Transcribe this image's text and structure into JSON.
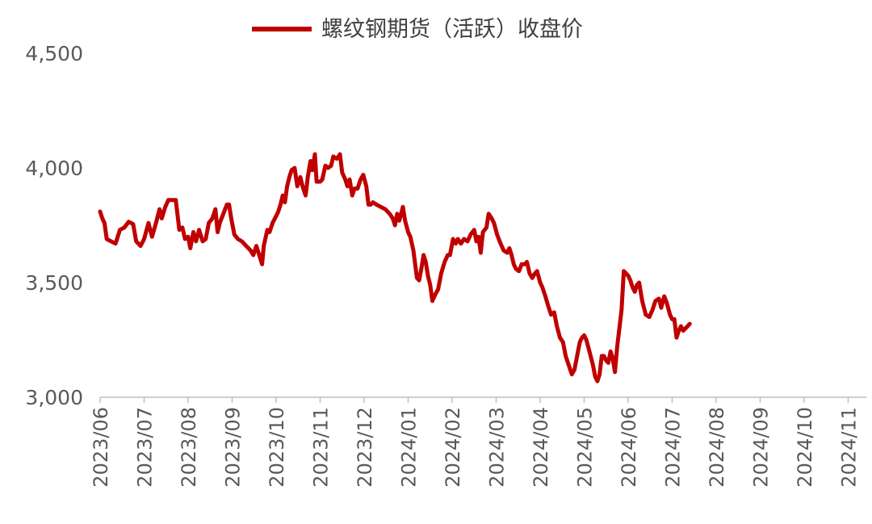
{
  "chart_data": {
    "type": "line",
    "title": "",
    "xlabel": "",
    "ylabel": "",
    "ylim": [
      3000,
      4500
    ],
    "yticks": [
      "3,000",
      "3,500",
      "4,000",
      "4,500"
    ],
    "xticks": [
      "2023/06",
      "2023/07",
      "2023/08",
      "2023/09",
      "2023/10",
      "2023/11",
      "2023/12",
      "2024/01",
      "2024/02",
      "2024/03",
      "2024/04",
      "2024/05",
      "2024/06",
      "2024/07",
      "2024/08",
      "2024/09",
      "2024/10",
      "2024/11"
    ],
    "grid": false,
    "legend": "top-center",
    "color": "#C00000",
    "series": [
      {
        "name": "螺纹钢期货（活跃）收盘价",
        "points": [
          [
            0.0,
            3810
          ],
          [
            0.05,
            3780
          ],
          [
            0.1,
            3760
          ],
          [
            0.15,
            3690
          ],
          [
            0.25,
            3680
          ],
          [
            0.35,
            3670
          ],
          [
            0.45,
            3730
          ],
          [
            0.55,
            3740
          ],
          [
            0.65,
            3765
          ],
          [
            0.75,
            3755
          ],
          [
            0.82,
            3680
          ],
          [
            0.92,
            3660
          ],
          [
            1.0,
            3690
          ],
          [
            1.1,
            3760
          ],
          [
            1.18,
            3700
          ],
          [
            1.27,
            3760
          ],
          [
            1.35,
            3820
          ],
          [
            1.4,
            3780
          ],
          [
            1.48,
            3830
          ],
          [
            1.55,
            3860
          ],
          [
            1.62,
            3860
          ],
          [
            1.72,
            3860
          ],
          [
            1.8,
            3730
          ],
          [
            1.87,
            3740
          ],
          [
            1.93,
            3690
          ],
          [
            2.0,
            3700
          ],
          [
            2.05,
            3650
          ],
          [
            2.12,
            3720
          ],
          [
            2.18,
            3680
          ],
          [
            2.25,
            3730
          ],
          [
            2.33,
            3680
          ],
          [
            2.4,
            3690
          ],
          [
            2.47,
            3760
          ],
          [
            2.55,
            3780
          ],
          [
            2.62,
            3820
          ],
          [
            2.67,
            3720
          ],
          [
            2.72,
            3760
          ],
          [
            2.8,
            3800
          ],
          [
            2.88,
            3840
          ],
          [
            2.93,
            3840
          ],
          [
            2.98,
            3780
          ],
          [
            3.05,
            3710
          ],
          [
            3.13,
            3690
          ],
          [
            3.22,
            3680
          ],
          [
            3.32,
            3660
          ],
          [
            3.42,
            3640
          ],
          [
            3.48,
            3620
          ],
          [
            3.55,
            3660
          ],
          [
            3.6,
            3630
          ],
          [
            3.68,
            3580
          ],
          [
            3.72,
            3660
          ],
          [
            3.8,
            3730
          ],
          [
            3.85,
            3720
          ],
          [
            3.92,
            3760
          ],
          [
            4.0,
            3790
          ],
          [
            4.05,
            3810
          ],
          [
            4.1,
            3840
          ],
          [
            4.15,
            3880
          ],
          [
            4.2,
            3850
          ],
          [
            4.25,
            3920
          ],
          [
            4.3,
            3960
          ],
          [
            4.35,
            3990
          ],
          [
            4.42,
            4000
          ],
          [
            4.48,
            3920
          ],
          [
            4.55,
            3960
          ],
          [
            4.6,
            3920
          ],
          [
            4.67,
            3880
          ],
          [
            4.72,
            3960
          ],
          [
            4.78,
            4030
          ],
          [
            4.82,
            3990
          ],
          [
            4.88,
            4060
          ],
          [
            4.92,
            3940
          ],
          [
            5.0,
            3940
          ],
          [
            5.05,
            3950
          ],
          [
            5.12,
            4010
          ],
          [
            5.18,
            4000
          ],
          [
            5.25,
            4010
          ],
          [
            5.3,
            4050
          ],
          [
            5.38,
            4040
          ],
          [
            5.45,
            4060
          ],
          [
            5.5,
            3980
          ],
          [
            5.57,
            3950
          ],
          [
            5.62,
            3920
          ],
          [
            5.67,
            3950
          ],
          [
            5.73,
            3880
          ],
          [
            5.78,
            3910
          ],
          [
            5.85,
            3910
          ],
          [
            5.92,
            3950
          ],
          [
            5.98,
            3970
          ],
          [
            6.05,
            3920
          ],
          [
            6.1,
            3840
          ],
          [
            6.15,
            3840
          ],
          [
            6.2,
            3850
          ],
          [
            6.28,
            3840
          ],
          [
            6.38,
            3830
          ],
          [
            6.48,
            3820
          ],
          [
            6.58,
            3800
          ],
          [
            6.65,
            3780
          ],
          [
            6.7,
            3750
          ],
          [
            6.75,
            3800
          ],
          [
            6.8,
            3770
          ],
          [
            6.88,
            3830
          ],
          [
            6.93,
            3770
          ],
          [
            7.0,
            3720
          ],
          [
            7.05,
            3700
          ],
          [
            7.12,
            3640
          ],
          [
            7.2,
            3520
          ],
          [
            7.25,
            3510
          ],
          [
            7.3,
            3560
          ],
          [
            7.35,
            3620
          ],
          [
            7.4,
            3590
          ],
          [
            7.45,
            3530
          ],
          [
            7.5,
            3490
          ],
          [
            7.55,
            3420
          ],
          [
            7.62,
            3450
          ],
          [
            7.68,
            3470
          ],
          [
            7.75,
            3540
          ],
          [
            7.83,
            3590
          ],
          [
            7.9,
            3620
          ],
          [
            7.95,
            3620
          ],
          [
            8.02,
            3690
          ],
          [
            8.08,
            3670
          ],
          [
            8.13,
            3690
          ],
          [
            8.2,
            3670
          ],
          [
            8.27,
            3690
          ],
          [
            8.35,
            3680
          ],
          [
            8.42,
            3710
          ],
          [
            8.5,
            3730
          ],
          [
            8.55,
            3680
          ],
          [
            8.6,
            3700
          ],
          [
            8.65,
            3630
          ],
          [
            8.7,
            3720
          ],
          [
            8.78,
            3740
          ],
          [
            8.83,
            3800
          ],
          [
            8.9,
            3780
          ],
          [
            8.95,
            3760
          ],
          [
            9.02,
            3710
          ],
          [
            9.1,
            3670
          ],
          [
            9.17,
            3640
          ],
          [
            9.25,
            3630
          ],
          [
            9.3,
            3650
          ],
          [
            9.35,
            3620
          ],
          [
            9.4,
            3580
          ],
          [
            9.45,
            3560
          ],
          [
            9.52,
            3550
          ],
          [
            9.58,
            3580
          ],
          [
            9.65,
            3580
          ],
          [
            9.7,
            3590
          ],
          [
            9.76,
            3540
          ],
          [
            9.82,
            3520
          ],
          [
            9.88,
            3540
          ],
          [
            9.93,
            3550
          ],
          [
            10.0,
            3500
          ],
          [
            10.05,
            3480
          ],
          [
            10.12,
            3440
          ],
          [
            10.18,
            3400
          ],
          [
            10.25,
            3360
          ],
          [
            10.32,
            3370
          ],
          [
            10.38,
            3310
          ],
          [
            10.45,
            3260
          ],
          [
            10.52,
            3240
          ],
          [
            10.58,
            3180
          ],
          [
            10.65,
            3140
          ],
          [
            10.72,
            3100
          ],
          [
            10.78,
            3120
          ],
          [
            10.83,
            3170
          ],
          [
            10.9,
            3240
          ],
          [
            10.95,
            3260
          ],
          [
            11.0,
            3270
          ],
          [
            11.05,
            3250
          ],
          [
            11.12,
            3200
          ],
          [
            11.2,
            3140
          ],
          [
            11.25,
            3090
          ],
          [
            11.3,
            3070
          ],
          [
            11.35,
            3100
          ],
          [
            11.4,
            3180
          ],
          [
            11.45,
            3180
          ],
          [
            11.5,
            3160
          ],
          [
            11.55,
            3150
          ],
          [
            11.6,
            3200
          ],
          [
            11.65,
            3170
          ],
          [
            11.7,
            3110
          ],
          [
            11.75,
            3220
          ],
          [
            11.8,
            3300
          ],
          [
            11.85,
            3380
          ],
          [
            11.9,
            3550
          ],
          [
            11.95,
            3540
          ],
          [
            12.0,
            3530
          ],
          [
            12.05,
            3510
          ],
          [
            12.1,
            3480
          ],
          [
            12.15,
            3460
          ],
          [
            12.2,
            3490
          ],
          [
            12.25,
            3500
          ],
          [
            12.32,
            3420
          ],
          [
            12.4,
            3360
          ],
          [
            12.48,
            3350
          ],
          [
            12.55,
            3380
          ],
          [
            12.62,
            3420
          ],
          [
            12.7,
            3430
          ],
          [
            12.75,
            3390
          ],
          [
            12.82,
            3440
          ],
          [
            12.88,
            3410
          ],
          [
            12.95,
            3360
          ],
          [
            13.0,
            3340
          ],
          [
            13.05,
            3340
          ],
          [
            13.1,
            3260
          ],
          [
            13.15,
            3290
          ],
          [
            13.2,
            3310
          ],
          [
            13.25,
            3290
          ],
          [
            13.3,
            3300
          ],
          [
            13.35,
            3310
          ],
          [
            13.4,
            3320
          ]
        ]
      }
    ]
  }
}
